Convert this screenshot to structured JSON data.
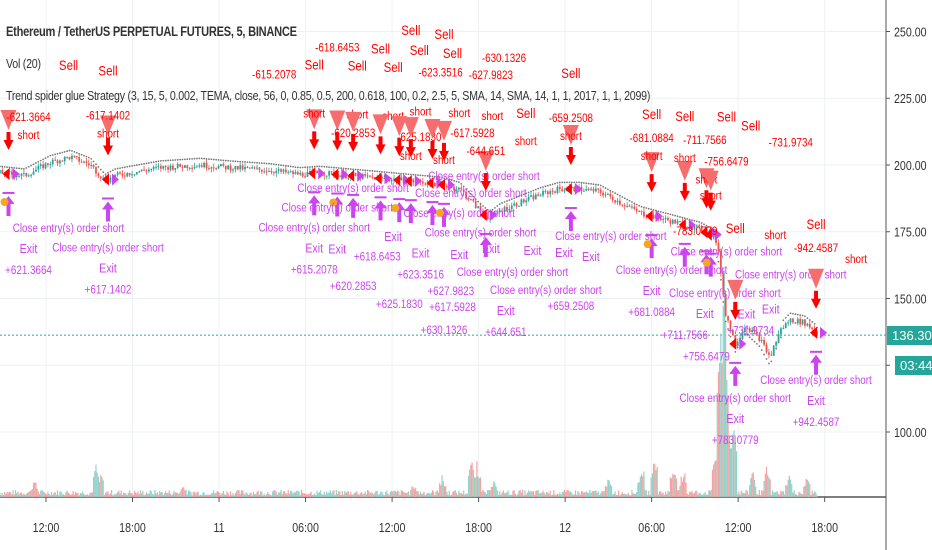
{
  "header": {
    "title": "Ethereum / TetherUS PERPETUAL FUTURES, 5, BINANCE",
    "volume_indicator": "Vol (20)",
    "strategy": "Trend spider glue Strategy (3, 15, 5, 0.002, TEMA, close, 56, 0, 0.85, 0.5, 200, 0.618, 100, 0.2, 2.5, 5, SMA, 14, SMA, 14, 1, 1, 2017, 1, 1, 2099)"
  },
  "price_axis": {
    "ticks": [
      "250.00",
      "225.00",
      "200.00",
      "175.00",
      "150.00",
      "100.00"
    ],
    "last_price": "136.30",
    "countdown": "03:44"
  },
  "colors": {
    "up": "#26a69a",
    "down": "#ef5350",
    "sell": "#ff0000",
    "exit": "#cc44ee",
    "orange": "#f5a623",
    "last": "#26a69a"
  },
  "chart_data": {
    "type": "candlestick",
    "title": "Ethereum / TetherUS PERPETUAL FUTURES, 5, BINANCE",
    "x_unit": "hours since day 10 00:00",
    "xlim": [
      8.8,
      70.3
    ],
    "ylim": [
      85,
      262
    ],
    "grid": true,
    "x_ticks": [
      {
        "h": 12,
        "label": "12:00"
      },
      {
        "h": 18,
        "label": "18:00"
      },
      {
        "h": 24,
        "label": "11"
      },
      {
        "h": 30,
        "label": "06:00"
      },
      {
        "h": 36,
        "label": "12:00"
      },
      {
        "h": 42,
        "label": "18:00"
      },
      {
        "h": 48,
        "label": "12"
      },
      {
        "h": 54,
        "label": "06:00"
      },
      {
        "h": 60,
        "label": "12:00"
      },
      {
        "h": 66,
        "label": "18:00"
      }
    ],
    "y_ticks": [
      250,
      225,
      200,
      175,
      150,
      125,
      100
    ],
    "price": [
      [
        8.8,
        197
      ],
      [
        10.5,
        196
      ],
      [
        12.3,
        201
      ],
      [
        13.7,
        203
      ],
      [
        15.1,
        200
      ],
      [
        16.1,
        194
      ],
      [
        16.8,
        196
      ],
      [
        17.8,
        197
      ],
      [
        19.9,
        199
      ],
      [
        22.7,
        200
      ],
      [
        24.8,
        199
      ],
      [
        27.5,
        198
      ],
      [
        29.6,
        196.5
      ],
      [
        31.0,
        197
      ],
      [
        33.1,
        196
      ],
      [
        35.2,
        195
      ],
      [
        37.2,
        194
      ],
      [
        39.3,
        193
      ],
      [
        40.7,
        191
      ],
      [
        42.1,
        183
      ],
      [
        42.8,
        180
      ],
      [
        43.5,
        183
      ],
      [
        44.9,
        186
      ],
      [
        46.3,
        189
      ],
      [
        47.6,
        191
      ],
      [
        49.0,
        191
      ],
      [
        50.4,
        190
      ],
      [
        51.8,
        186
      ],
      [
        53.2,
        182
      ],
      [
        54.6,
        180
      ],
      [
        56.0,
        178
      ],
      [
        57.4,
        176
      ],
      [
        58.4,
        173
      ],
      [
        58.7,
        165
      ],
      [
        59.1,
        145
      ],
      [
        59.8,
        133
      ],
      [
        60.5,
        140
      ],
      [
        61.5,
        135
      ],
      [
        62.2,
        128
      ],
      [
        62.9,
        138
      ],
      [
        63.6,
        142
      ],
      [
        64.6,
        141
      ],
      [
        65.3,
        138
      ],
      [
        65.5,
        136.3
      ]
    ],
    "volume_base": 4,
    "volume_spikes": [
      [
        11.2,
        18
      ],
      [
        15.5,
        32
      ],
      [
        15.8,
        24
      ],
      [
        21.5,
        12
      ],
      [
        37.5,
        14
      ],
      [
        39.5,
        22
      ],
      [
        41.5,
        35
      ],
      [
        41.9,
        35
      ],
      [
        43.0,
        18
      ],
      [
        51.0,
        20
      ],
      [
        53.3,
        36
      ],
      [
        54.2,
        56
      ],
      [
        55.5,
        30
      ],
      [
        56.2,
        28
      ],
      [
        58.4,
        55
      ],
      [
        58.8,
        190
      ],
      [
        59.0,
        230
      ],
      [
        59.3,
        110
      ],
      [
        59.7,
        80
      ],
      [
        61.0,
        30
      ],
      [
        62.0,
        30
      ],
      [
        63.5,
        24
      ],
      [
        64.8,
        22
      ]
    ],
    "trades": [
      {
        "h": 9.4,
        "sell": "Sell",
        "sell_pnl": "-621.3664",
        "exit_pnl": "+621.3664"
      },
      {
        "h": 16.3,
        "sell": "Sell",
        "sell_pnl": "-617.1402",
        "exit_pnl": "+617.1402"
      },
      {
        "h": 30.6,
        "sell": "Sell",
        "sell_pnl": "-615.2078",
        "exit_pnl": "+615.2078"
      },
      {
        "h": 32.2,
        "sell": "Sell",
        "sell_pnl": "-618.6453",
        "exit_pnl": "+618.6453"
      },
      {
        "h": 33.3,
        "sell": "Sell",
        "sell_pnl": "-620.2853",
        "exit_pnl": "+620.2853"
      },
      {
        "h": 35.2,
        "sell": "Sell",
        "sell_pnl": "-623.3516",
        "exit_pnl": "+623.3516"
      },
      {
        "h": 36.5,
        "sell": "Sell",
        "sell_pnl": "-625.1830",
        "exit_pnl": "+625.1830"
      },
      {
        "h": 37.3,
        "sell": "Sell",
        "sell_pnl": "-627.9823",
        "exit_pnl": "+627.9823"
      },
      {
        "h": 38.8,
        "sell": "Sell",
        "sell_pnl": "-617.5928",
        "exit_pnl": "+617.5928"
      },
      {
        "h": 39.6,
        "sell": "Sell",
        "sell_pnl": "-630.1326",
        "exit_pnl": "+630.1326"
      },
      {
        "h": 42.5,
        "sell": "Sell",
        "sell_pnl": "-644.651",
        "exit_pnl": "+644.651"
      },
      {
        "h": 48.4,
        "sell": "Sell",
        "sell_pnl": "-659.2508",
        "exit_pnl": "+659.2508"
      },
      {
        "h": 54.0,
        "sell": "Sell",
        "sell_pnl": "-681.0884",
        "exit_pnl": "+681.0884"
      },
      {
        "h": 56.3,
        "sell": "Sell",
        "sell_pnl": "-711.7566",
        "exit_pnl": "+711.7566"
      },
      {
        "h": 57.8,
        "sell": "Sell",
        "sell_pnl": "-756.6479",
        "exit_pnl": "+756.6479"
      },
      {
        "h": 58.1,
        "sell": "Sell",
        "sell_pnl": "-731.9734",
        "exit_pnl": "+731.9734"
      },
      {
        "h": 59.8,
        "sell": "Sell",
        "sell_pnl": "-783.0779",
        "exit_pnl": "+783.0779"
      },
      {
        "h": 65.4,
        "sell": "Sell",
        "sell_pnl": "-942.4587",
        "exit_pnl": "+942.4587"
      }
    ],
    "labels": {
      "short": "short",
      "exit": "Exit",
      "close": "Close entry(s) order short"
    }
  }
}
